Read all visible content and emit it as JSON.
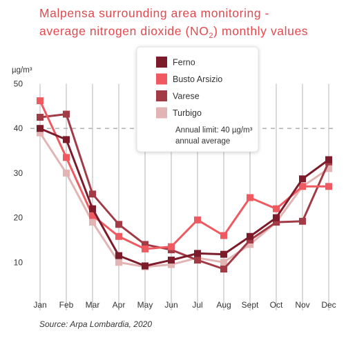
{
  "chart_data": {
    "type": "line",
    "title_line1": "Malpensa surrounding area monitoring -",
    "title_line2_pre": "average nitrogen dioxide (NO",
    "title_line2_sub": "2",
    "title_line2_post": ") monthly values",
    "ylabel": "µg/m³",
    "ylim": [
      0,
      50
    ],
    "yticks": [
      10,
      20,
      30,
      40,
      50
    ],
    "grid": "vertical",
    "categories": [
      "Jan",
      "Feb",
      "Mar",
      "Apr",
      "May",
      "Jun",
      "Jul",
      "Aug",
      "Sept",
      "Oct",
      "Nov",
      "Dec"
    ],
    "series": [
      {
        "name": "Turbigo",
        "color": "#e2b4b4",
        "values": [
          39,
          30,
          19,
          10,
          9,
          9.5,
          11,
          10,
          14,
          19,
          27,
          31
        ]
      },
      {
        "name": "Varese",
        "color": "#a33b46",
        "values": [
          42.5,
          43.2,
          25.3,
          18.5,
          14,
          12.8,
          10.5,
          8.5,
          15,
          19,
          19.2,
          32.5
        ]
      },
      {
        "name": "Busto Arsizio",
        "color": "#ef5a60",
        "values": [
          46.2,
          33.5,
          20.5,
          15.8,
          13,
          13.5,
          19.5,
          16,
          24.5,
          22,
          27,
          27
        ]
      },
      {
        "name": "Ferno",
        "color": "#7c1b2a",
        "values": [
          40,
          37.5,
          22,
          11.5,
          9.2,
          10.5,
          12,
          11.8,
          15.8,
          20,
          28.7,
          33
        ]
      }
    ],
    "legend_order": [
      "Ferno",
      "Busto Arsizio",
      "Varese",
      "Turbigo"
    ],
    "legend_position": "top-center",
    "reference_line": {
      "value": 40,
      "label_line1": "Annual limit: 40 µg/m³",
      "label_line2": "annual average",
      "color": "#aaaaaa"
    },
    "source": "Source: Arpa Lombardia, 2020"
  }
}
